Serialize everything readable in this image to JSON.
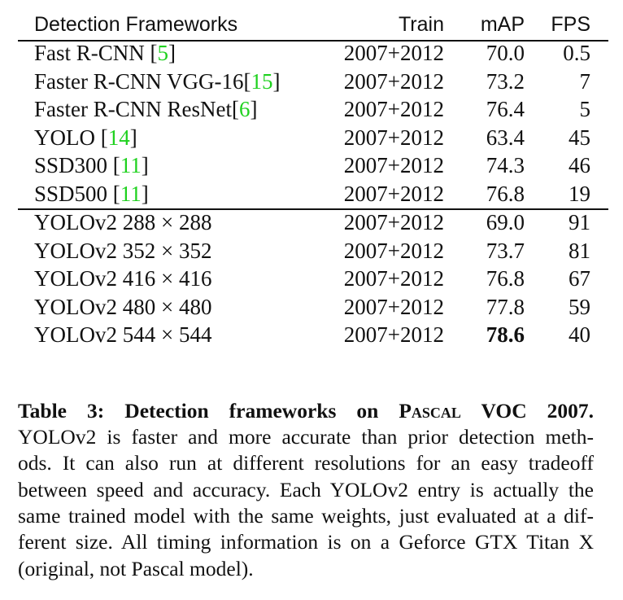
{
  "table": {
    "header": [
      "Detection Frameworks",
      "Train",
      "mAP",
      "FPS"
    ],
    "rows": [
      {
        "name": "Fast R-CNN [",
        "ref": "5",
        "close": "]",
        "train": "2007+2012",
        "map": "70.0",
        "fps": "0.5"
      },
      {
        "name": "Faster R-CNN VGG-16[",
        "ref": "15",
        "close": "]",
        "train": "2007+2012",
        "map": "73.2",
        "fps": "7"
      },
      {
        "name": "Faster R-CNN ResNet[",
        "ref": "6",
        "close": "]",
        "train": "2007+2012",
        "map": "76.4",
        "fps": "5"
      },
      {
        "name": "YOLO [",
        "ref": "14",
        "close": "]",
        "train": "2007+2012",
        "map": "63.4",
        "fps": "45"
      },
      {
        "name": "SSD300 [",
        "ref": "11",
        "close": "]",
        "train": "2007+2012",
        "map": "74.3",
        "fps": "46"
      },
      {
        "name": "SSD500 [",
        "ref": "11",
        "close": "]",
        "train": "2007+2012",
        "map": "76.8",
        "fps": "19"
      },
      {
        "name": "YOLOv2 288 × 288",
        "train": "2007+2012",
        "map": "69.0",
        "fps": "91"
      },
      {
        "name": "YOLOv2 352 × 352",
        "train": "2007+2012",
        "map": "73.7",
        "fps": "81"
      },
      {
        "name": "YOLOv2 416 × 416",
        "train": "2007+2012",
        "map": "76.8",
        "fps": "67"
      },
      {
        "name": "YOLOv2 480 × 480",
        "train": "2007+2012",
        "map": "77.8",
        "fps": "59"
      },
      {
        "name": "YOLOv2 544 × 544",
        "train": "2007+2012",
        "map": "78.6",
        "fps": "40"
      }
    ]
  },
  "caption": {
    "label": "Table 3:",
    "title": [
      "Detection frameworks on ",
      "Pascal",
      " VOC 2007."
    ],
    "lines": [
      "YOLOv2 is faster and more accurate than prior detection meth-",
      "ods. It can also run at different resolutions for an easy tradeoff",
      "between speed and accuracy. Each YOLOv2 entry is actually the",
      "same trained model with the same weights, just evaluated at a dif-",
      "ferent size. All timing information is on a Geforce GTX Titan X",
      "(original, not Pascal model)."
    ]
  }
}
